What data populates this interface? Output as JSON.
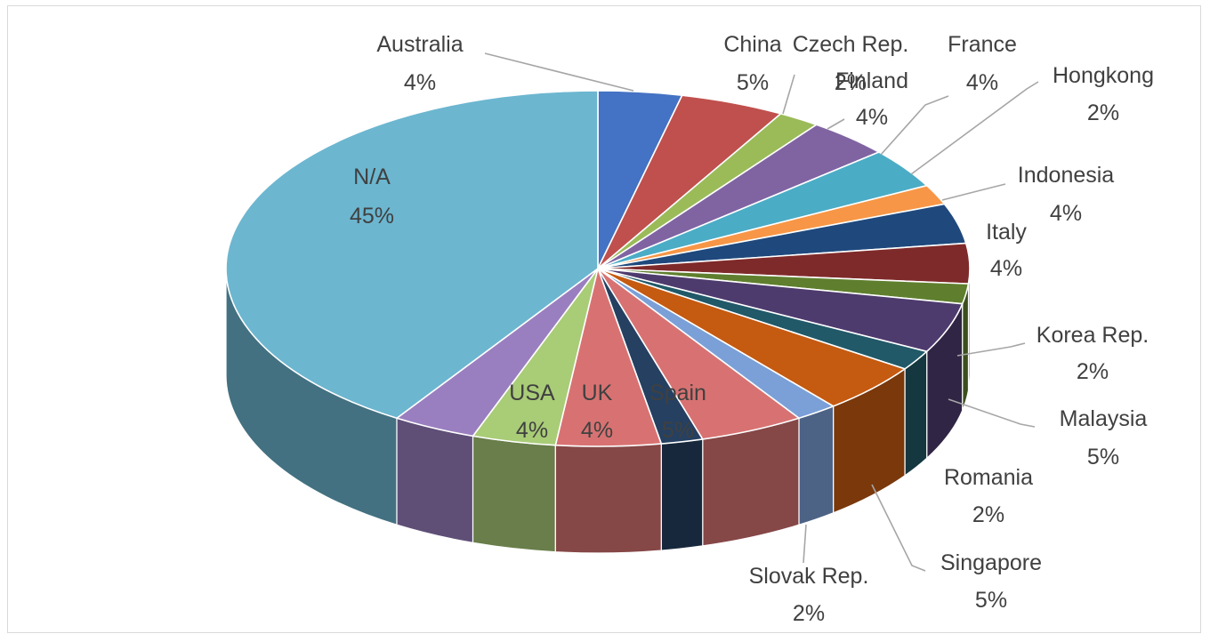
{
  "chart_data": {
    "type": "pie",
    "style": "3d",
    "title": "",
    "slices": [
      {
        "label": "Australia",
        "pct_label": "4%",
        "value": 4,
        "color": "#4472c4"
      },
      {
        "label": "China",
        "pct_label": "5%",
        "value": 5,
        "color": "#c0504d"
      },
      {
        "label": "Czech Rep.",
        "pct_label": "2%",
        "value": 2,
        "color": "#9bbb59"
      },
      {
        "label": "Finland",
        "pct_label": "4%",
        "value": 4,
        "color": "#8064a2"
      },
      {
        "label": "France",
        "pct_label": "4%",
        "value": 4,
        "color": "#4bacc6"
      },
      {
        "label": "Hongkong",
        "pct_label": "2%",
        "value": 2,
        "color": "#f79646"
      },
      {
        "label": "Indonesia",
        "pct_label": "4%",
        "value": 4,
        "color": "#1f497d"
      },
      {
        "label": "Italy",
        "pct_label": "4%",
        "value": 4,
        "color": "#7f2a2a"
      },
      {
        "label": "",
        "pct_label": "",
        "value": 2,
        "color": "#5f7f2e"
      },
      {
        "label": "",
        "pct_label": "",
        "value": 5,
        "color": "#4e3b6e"
      },
      {
        "label": "Korea Rep.",
        "pct_label": "2%",
        "value": 2,
        "color": "#215968"
      },
      {
        "label": "Malaysia",
        "pct_label": "5%",
        "value": 5,
        "color": "#c55a11"
      },
      {
        "label": "Romania",
        "pct_label": "2%",
        "value": 2,
        "color": "#7ba0d8"
      },
      {
        "label": "Singapore",
        "pct_label": "5%",
        "value": 5,
        "color": "#d87272"
      },
      {
        "label": "Slovak Rep.",
        "pct_label": "2%",
        "value": 2,
        "color": "#254061"
      },
      {
        "label": "Spain",
        "pct_label": "5%",
        "value": 5,
        "color": "#d87272"
      },
      {
        "label": "UK",
        "pct_label": "4%",
        "value": 4,
        "color": "#a9cc77"
      },
      {
        "label": "USA",
        "pct_label": "4%",
        "value": 4,
        "color": "#9a7fc0"
      },
      {
        "label": "N/A",
        "pct_label": "45%",
        "value": 45,
        "color": "#6cb6d0"
      }
    ]
  }
}
